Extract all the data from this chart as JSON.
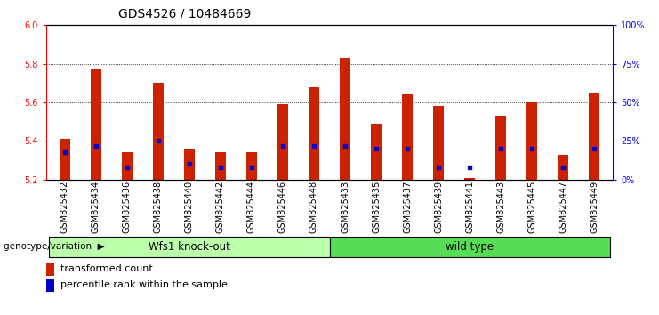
{
  "title": "GDS4526 / 10484669",
  "samples": [
    "GSM825432",
    "GSM825434",
    "GSM825436",
    "GSM825438",
    "GSM825440",
    "GSM825442",
    "GSM825444",
    "GSM825446",
    "GSM825448",
    "GSM825433",
    "GSM825435",
    "GSM825437",
    "GSM825439",
    "GSM825441",
    "GSM825443",
    "GSM825445",
    "GSM825447",
    "GSM825449"
  ],
  "red_values": [
    5.41,
    5.77,
    5.34,
    5.7,
    5.36,
    5.34,
    5.34,
    5.59,
    5.68,
    5.83,
    5.49,
    5.64,
    5.58,
    5.21,
    5.53,
    5.6,
    5.33,
    5.65
  ],
  "blue_values": [
    18,
    22,
    8,
    25,
    10,
    8,
    8,
    22,
    22,
    22,
    20,
    20,
    8,
    8,
    20,
    20,
    8,
    20
  ],
  "ymin": 5.2,
  "ymax": 6.0,
  "y2min": 0,
  "y2max": 100,
  "yticks": [
    5.2,
    5.4,
    5.6,
    5.8,
    6.0
  ],
  "y2ticks": [
    0,
    25,
    50,
    75,
    100
  ],
  "y2ticklabels": [
    "0%",
    "25%",
    "50%",
    "75%",
    "100%"
  ],
  "group1_label": "Wfs1 knock-out",
  "group2_label": "wild type",
  "group1_count": 9,
  "group2_count": 9,
  "legend_red": "transformed count",
  "legend_blue": "percentile rank within the sample",
  "genotype_label": "genotype/variation",
  "red_color": "#CC2200",
  "blue_color": "#0000CC",
  "group1_bg": "#BBFFAA",
  "group2_bg": "#55DD55",
  "title_fontsize": 10,
  "tick_fontsize": 7,
  "label_fontsize": 8
}
